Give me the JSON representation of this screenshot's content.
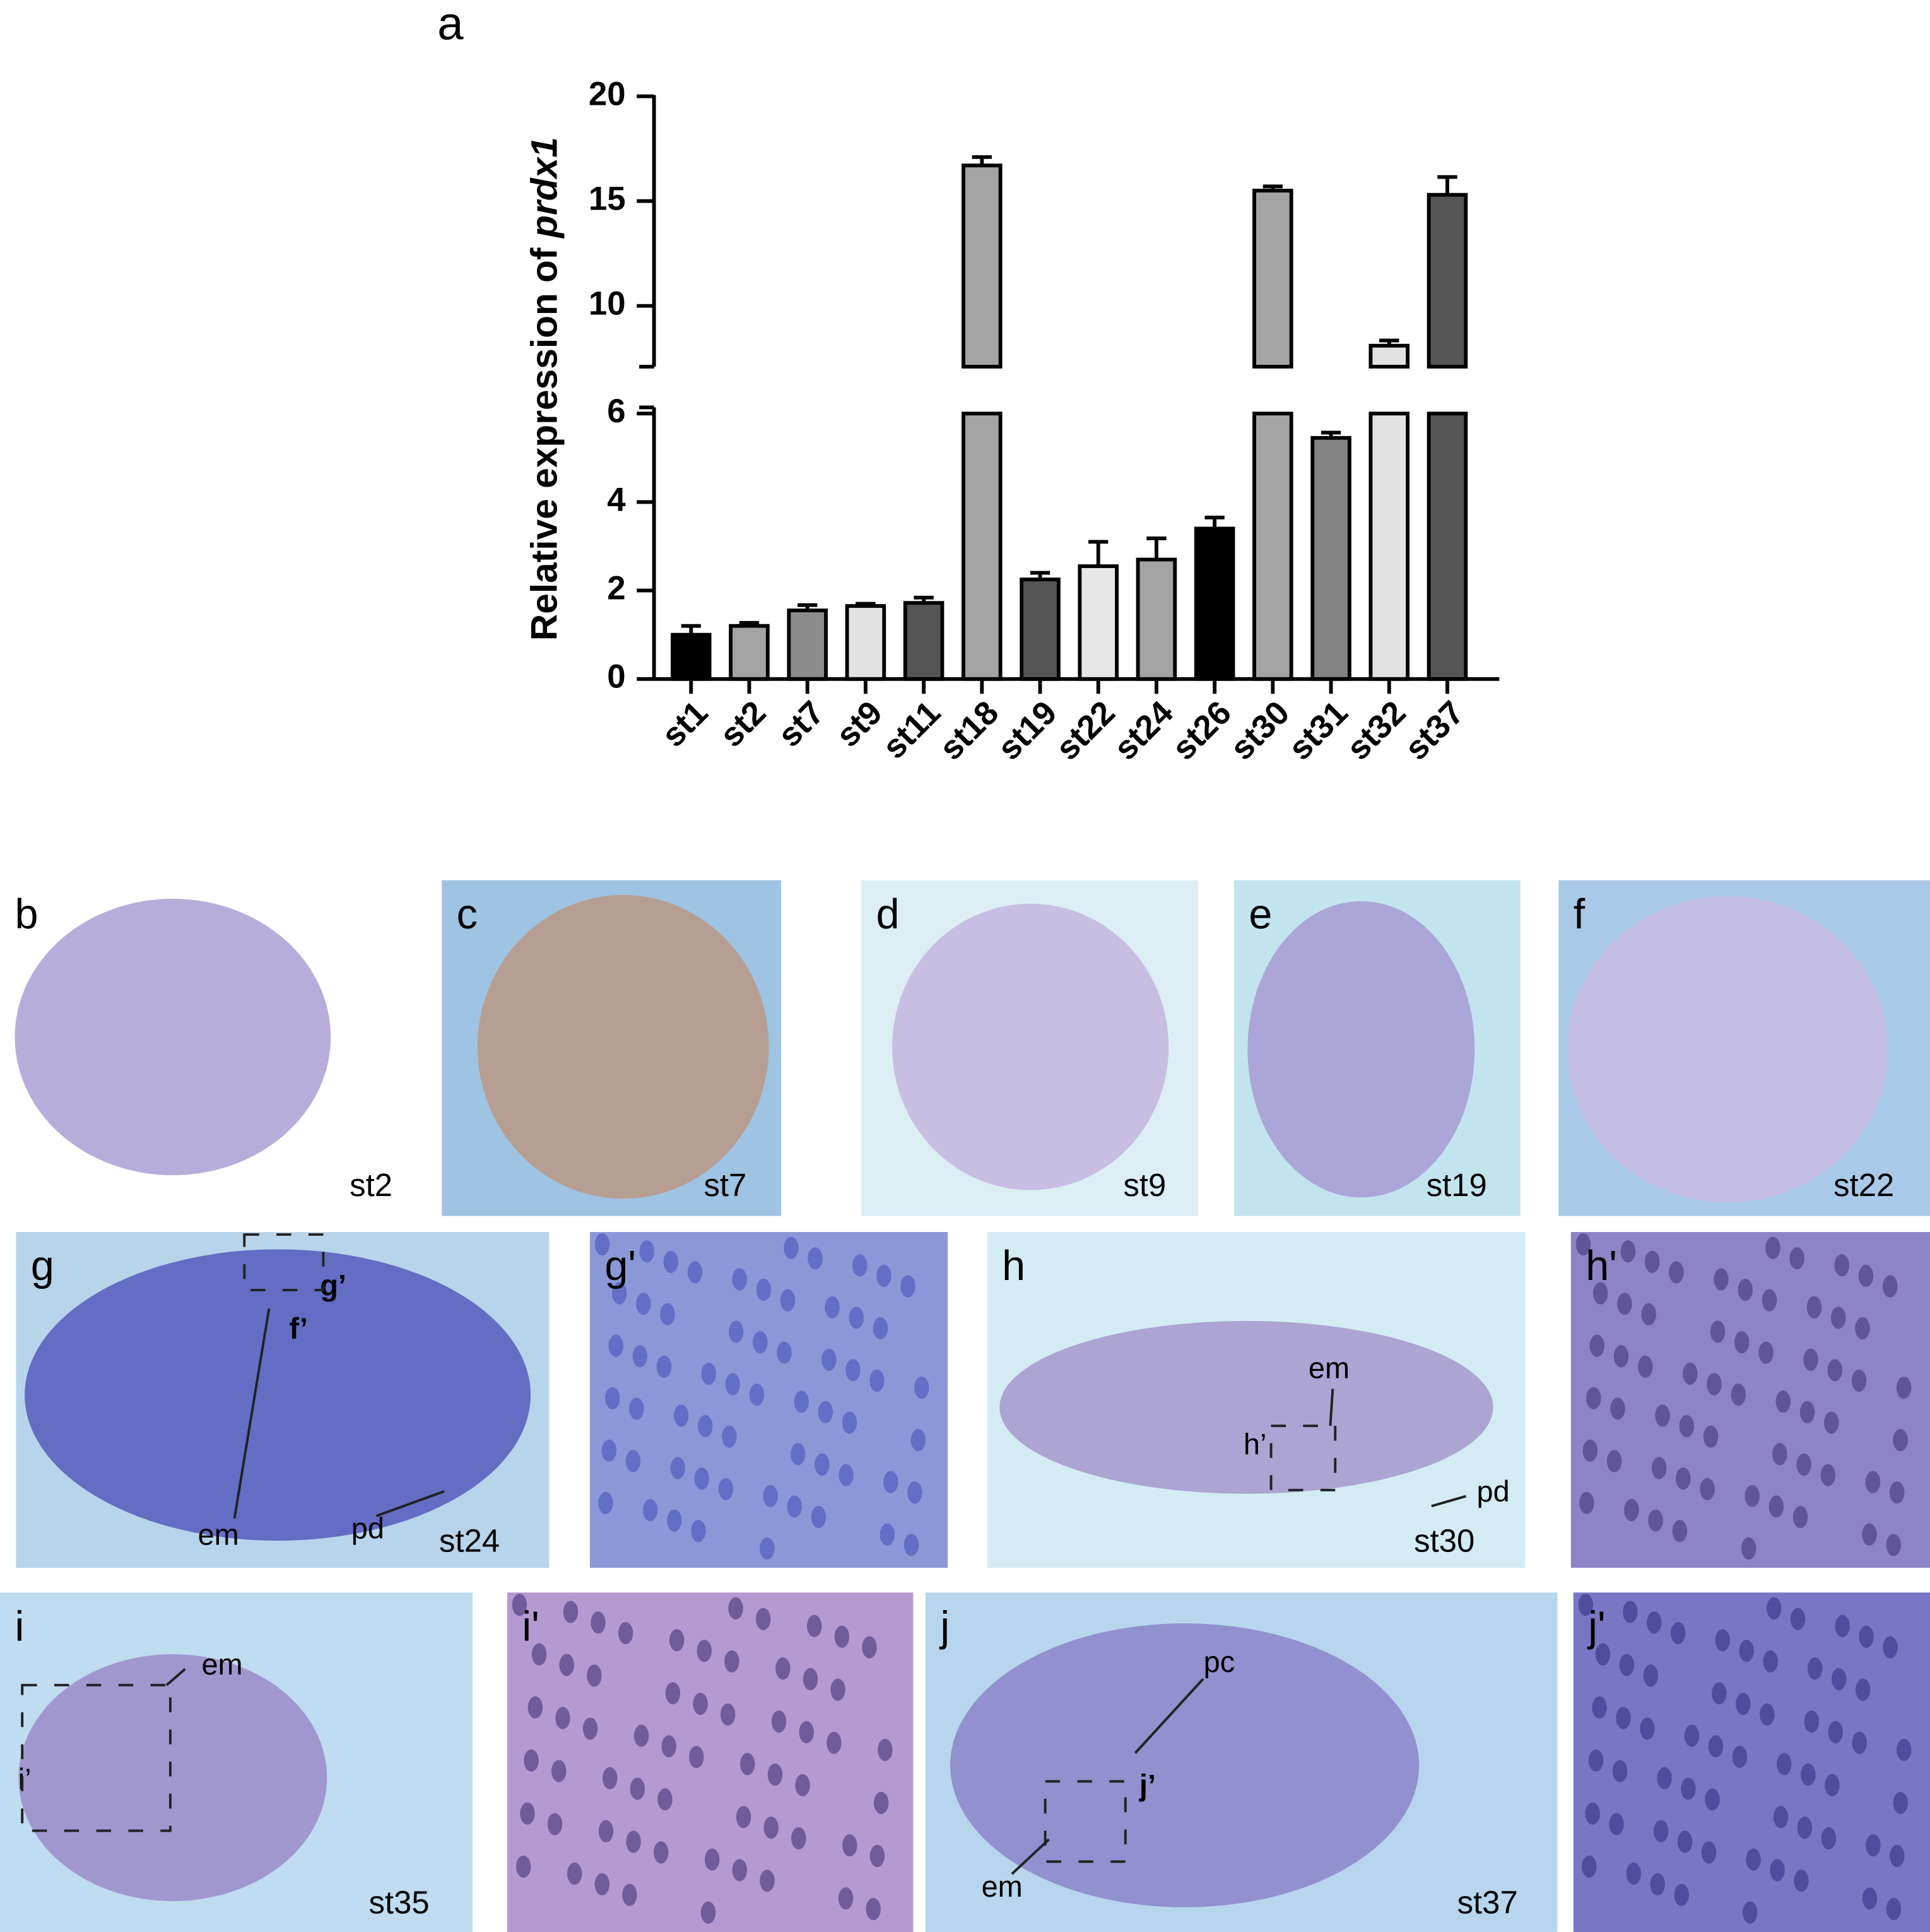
{
  "chart_data": {
    "type": "bar",
    "panel_label": "a",
    "ylabel": [
      "Relative expression of",
      "prdx1"
    ],
    "categories": [
      "st1",
      "st2",
      "st7",
      "st9",
      "st11",
      "st18",
      "st19",
      "st22",
      "st24",
      "st26",
      "st30",
      "st31",
      "st32",
      "st37"
    ],
    "values": [
      1.0,
      1.2,
      1.55,
      1.65,
      1.72,
      16.7,
      2.25,
      2.55,
      2.7,
      3.4,
      15.5,
      5.45,
      8.1,
      15.3
    ],
    "errors": [
      0.2,
      0.07,
      0.12,
      0.05,
      0.12,
      0.4,
      0.15,
      0.55,
      0.48,
      0.25,
      0.2,
      0.12,
      0.25,
      0.85
    ],
    "colors": [
      "#000000",
      "#a3a3a3",
      "#8c8c8c",
      "#e2e2e2",
      "#555555",
      "#a3a3a3",
      "#555555",
      "#e6e6e6",
      "#a3a3a3",
      "#000000",
      "#a3a3a3",
      "#838383",
      "#e2e2e2",
      "#555555"
    ],
    "y_segments": [
      {
        "ylim": [
          0,
          6
        ],
        "yticks": [
          0,
          2,
          4,
          6
        ]
      },
      {
        "ylim": [
          7.1,
          20
        ],
        "yticks": [
          10,
          15,
          20
        ]
      }
    ]
  },
  "panels": [
    {
      "label": "b",
      "stage": "st2"
    },
    {
      "label": "c",
      "stage": "st7"
    },
    {
      "label": "d",
      "stage": "st9"
    },
    {
      "label": "e",
      "stage": "st19"
    },
    {
      "label": "f",
      "stage": "st22"
    },
    {
      "label": "g",
      "stage": "st24",
      "annotations": [
        "g’",
        "f’",
        "em",
        "pd"
      ]
    },
    {
      "label": "g'"
    },
    {
      "label": "h",
      "stage": "st30",
      "annotations": [
        "em",
        "h’",
        "pd"
      ]
    },
    {
      "label": "h'"
    },
    {
      "label": "i",
      "stage": "st35",
      "annotations": [
        "em",
        "i’"
      ]
    },
    {
      "label": "i'"
    },
    {
      "label": "j",
      "stage": "st37",
      "annotations": [
        "pc",
        "j’",
        "em"
      ]
    },
    {
      "label": "j'"
    }
  ]
}
